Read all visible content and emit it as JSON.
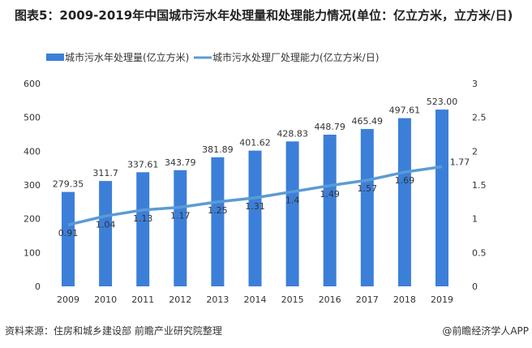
{
  "title": "图表5：2009-2019年中国城市污水年处理量和处理能力情况(单位：亿立方米，立方米/日)",
  "source": "资料来源：住房和城乡建设部 前瞻产业研究院整理",
  "credit": "@前瞻经济学人APP",
  "colors": {
    "bar": "#3c7fd9",
    "line": "#5b9bd5"
  },
  "chart_data": {
    "type": "bar+line",
    "categories": [
      "2009",
      "2010",
      "2011",
      "2012",
      "2013",
      "2014",
      "2015",
      "2016",
      "2017",
      "2018",
      "2019"
    ],
    "series": [
      {
        "name": "城市污水年处理量(亿立方米)",
        "type": "bar",
        "axis": "left",
        "values": [
          279.35,
          311.7,
          337.61,
          343.79,
          381.89,
          401.62,
          428.83,
          448.79,
          465.49,
          497.61,
          523.0
        ],
        "labels": [
          "279.35",
          "311.7",
          "337.61",
          "343.79",
          "381.89",
          "401.62",
          "428.83",
          "448.79",
          "465.49",
          "497.61",
          "523.00"
        ]
      },
      {
        "name": "城市污水处理厂处理能力(亿立方米/日)",
        "type": "line",
        "axis": "right",
        "values": [
          0.91,
          1.04,
          1.13,
          1.17,
          1.25,
          1.31,
          1.4,
          1.49,
          1.57,
          1.69,
          1.77
        ],
        "labels": [
          "0.91",
          "1.04",
          "1.13",
          "1.17",
          "1.25",
          "1.31",
          "1.4",
          "1.49",
          "1.57",
          "1.69",
          "1.77"
        ]
      }
    ],
    "y_left": {
      "range": [
        0,
        600
      ],
      "ticks": [
        "0",
        "100",
        "200",
        "300",
        "400",
        "500",
        "600"
      ]
    },
    "y_right": {
      "range": [
        0,
        3
      ],
      "ticks": [
        "0",
        "0.5",
        "1",
        "1.5",
        "2",
        "2.5",
        "3"
      ]
    },
    "legend": "top",
    "grid": false
  }
}
